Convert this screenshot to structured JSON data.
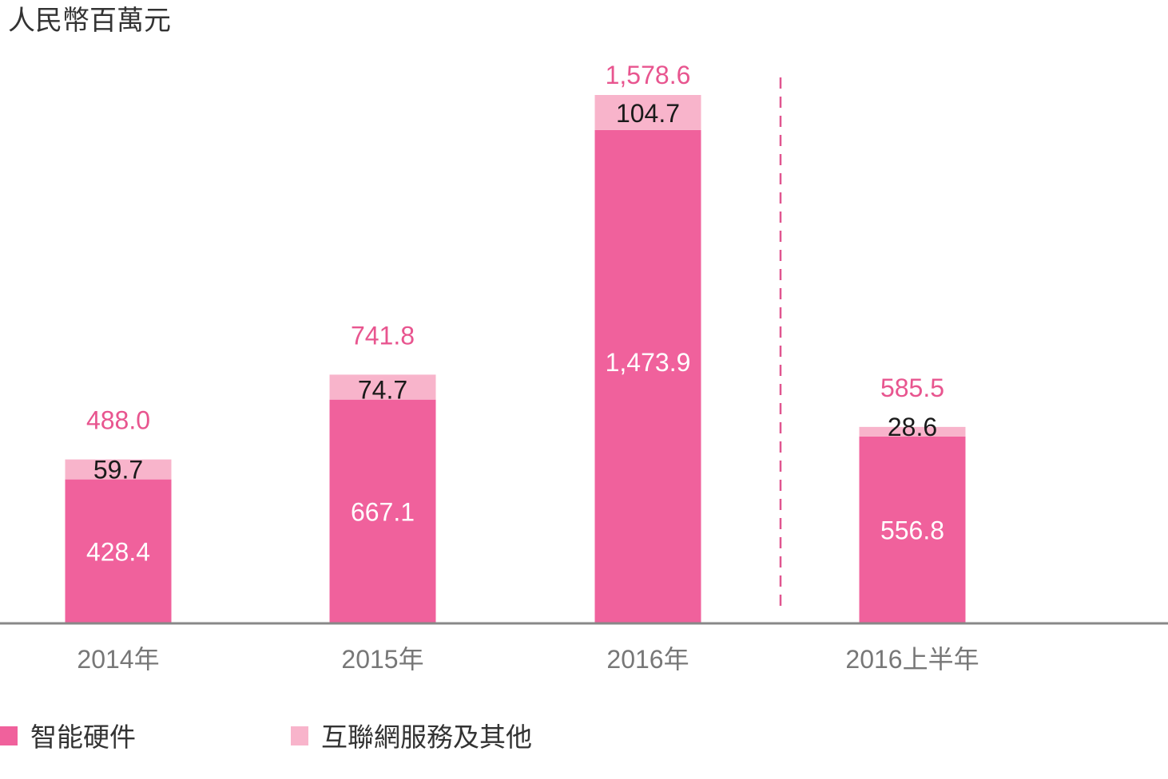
{
  "colors": {
    "hardware": "#f0619c",
    "services": "#f8b4cb",
    "total_label": "#e8558f",
    "divider": "#e0558f",
    "axis": "#888888",
    "inner_label_light": "#ffffff",
    "inner_label_dark": "#1a1a1a"
  },
  "chart_data": {
    "type": "bar",
    "stacked": true,
    "unit_label": "人民幣百萬元",
    "categories": [
      "2014年",
      "2015年",
      "2016年",
      "2016上半年"
    ],
    "series": [
      {
        "name": "智能硬件",
        "values": [
          428.4,
          667.1,
          1473.9,
          556.8
        ]
      },
      {
        "name": "互聯網服務及其他",
        "values": [
          59.7,
          74.7,
          104.7,
          28.6
        ]
      }
    ],
    "value_labels": {
      "hardware": [
        "428.4",
        "667.1",
        "1,473.9",
        "556.8"
      ],
      "services": [
        "59.7",
        "74.7",
        "104.7",
        "28.6"
      ],
      "totals": [
        "488.0",
        "741.8",
        "1,578.6",
        "585.5"
      ]
    },
    "totals": [
      488.0,
      741.8,
      1578.6,
      585.5
    ],
    "divider_before_category": 3,
    "ylim": [
      0,
      1578.6
    ],
    "grid": false,
    "legend": "bottom-left"
  }
}
